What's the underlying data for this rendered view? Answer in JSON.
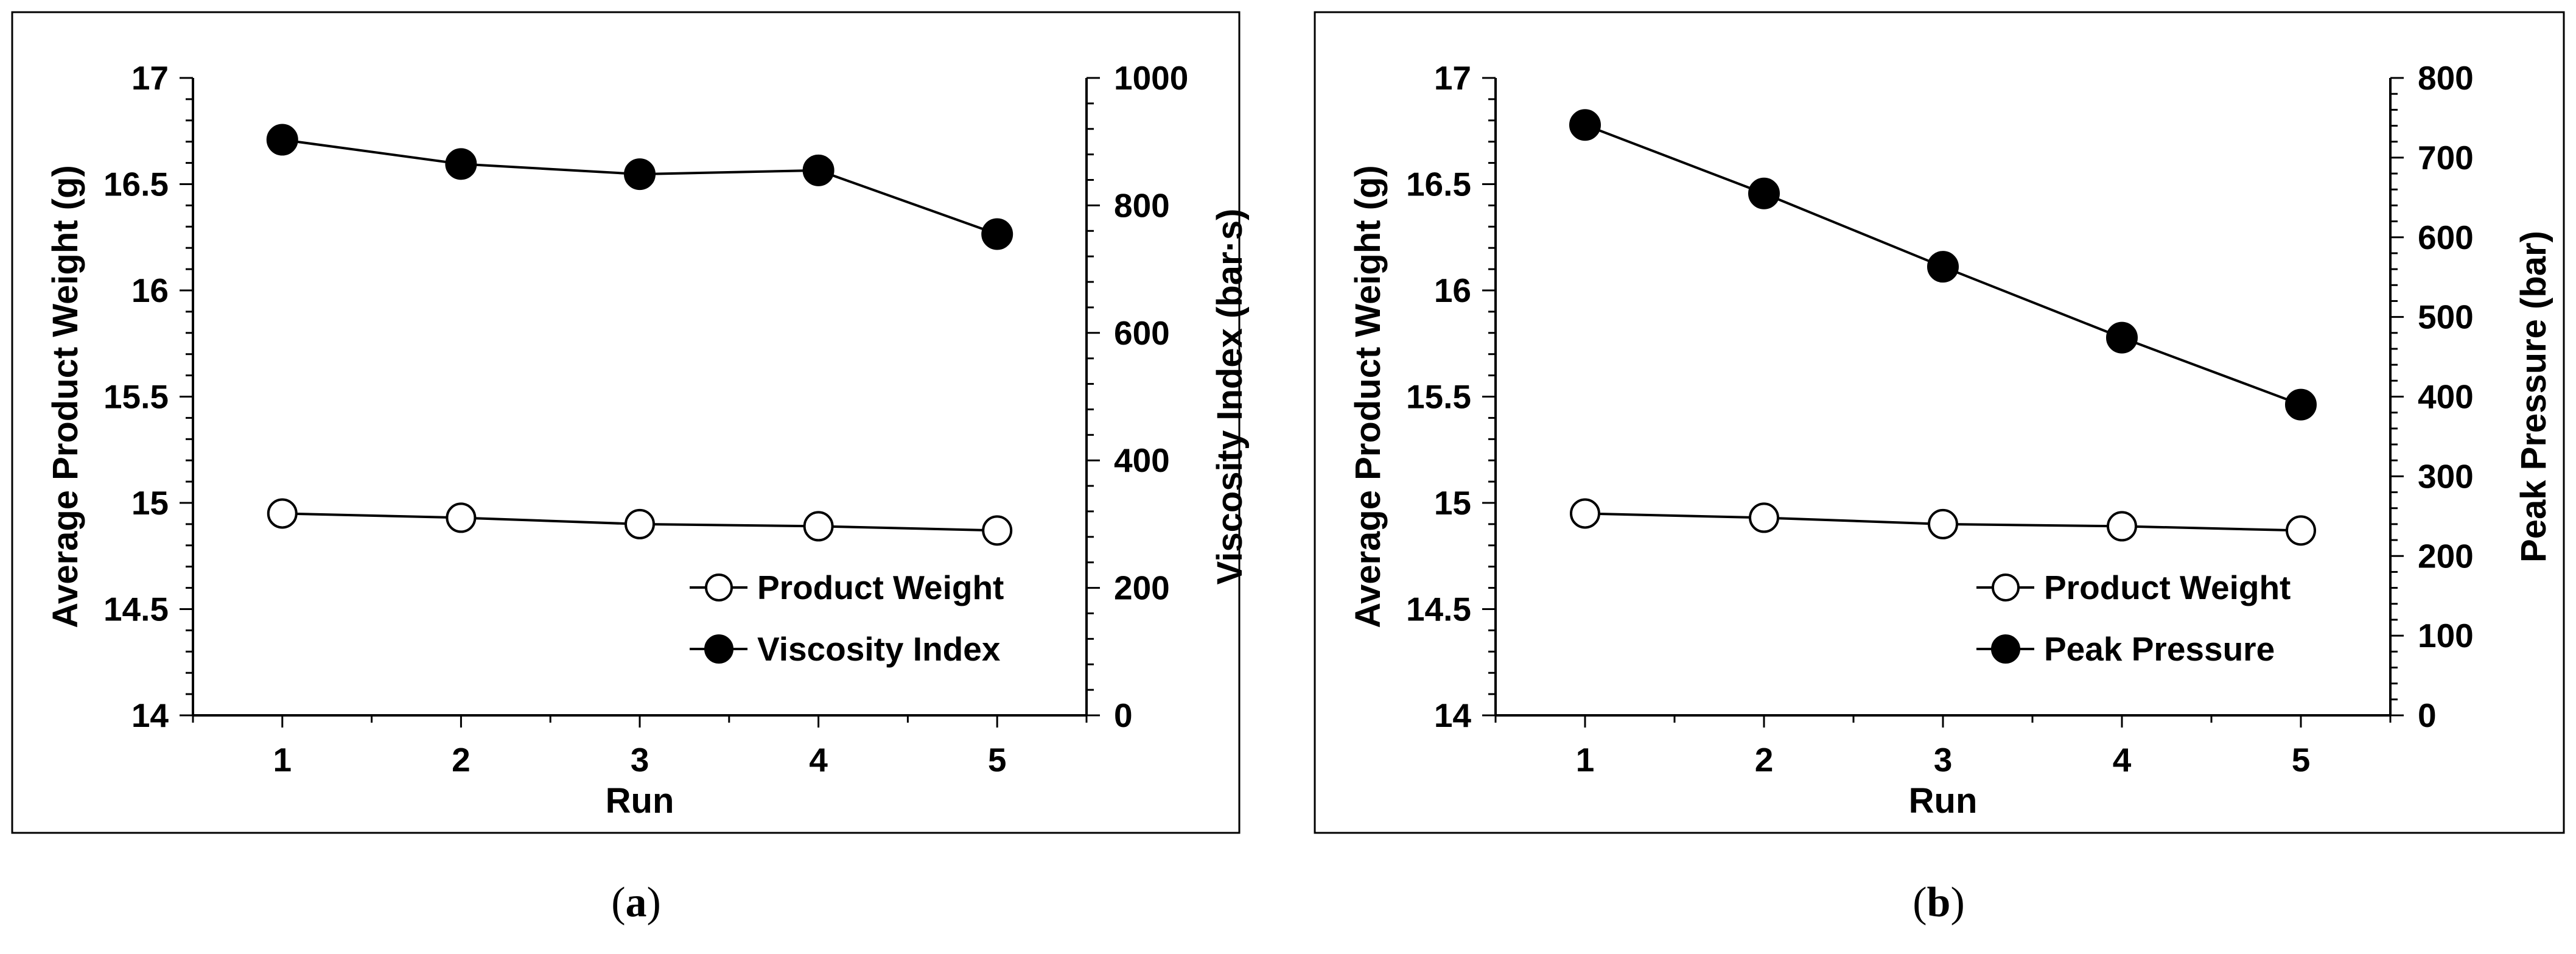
{
  "chart_data": [
    {
      "type": "line",
      "caption": "a",
      "xlabel": "Run",
      "ylabel": "Average Product Weight (g)",
      "y2label": "Viscosity Index (bar·s)",
      "categories": [
        "1",
        "2",
        "3",
        "4",
        "5"
      ],
      "ylim": [
        14,
        17
      ],
      "y_ticks": [
        "14",
        "14.5",
        "15",
        "15.5",
        "16",
        "16.5",
        "17"
      ],
      "y2lim": [
        0,
        1000
      ],
      "y2_ticks": [
        "0",
        "200",
        "400",
        "600",
        "800",
        "1000"
      ],
      "series": [
        {
          "name": "Product Weight",
          "axis": "left",
          "marker": "open-circle",
          "values": [
            14.95,
            14.93,
            14.9,
            14.89,
            14.87
          ]
        },
        {
          "name": "Viscosity Index",
          "axis": "right",
          "marker": "filled-circle",
          "values": [
            903,
            865,
            849,
            855,
            755
          ]
        }
      ],
      "legend_position": "bottom-right"
    },
    {
      "type": "line",
      "caption": "b",
      "xlabel": "Run",
      "ylabel": "Average Product Weight (g)",
      "y2label": "Peak Pressure (bar)",
      "categories": [
        "1",
        "2",
        "3",
        "4",
        "5"
      ],
      "ylim": [
        14,
        17
      ],
      "y_ticks": [
        "14",
        "14.5",
        "15",
        "15.5",
        "16",
        "16.5",
        "17"
      ],
      "y2lim": [
        0,
        800
      ],
      "y2_ticks": [
        "0",
        "100",
        "200",
        "300",
        "400",
        "500",
        "600",
        "700",
        "800"
      ],
      "series": [
        {
          "name": "Product Weight",
          "axis": "left",
          "marker": "open-circle",
          "values": [
            14.95,
            14.93,
            14.9,
            14.89,
            14.87
          ]
        },
        {
          "name": "Peak Pressure",
          "axis": "right",
          "marker": "filled-circle",
          "values": [
            741,
            655,
            563,
            474,
            390
          ]
        }
      ],
      "legend_position": "bottom-right"
    }
  ]
}
